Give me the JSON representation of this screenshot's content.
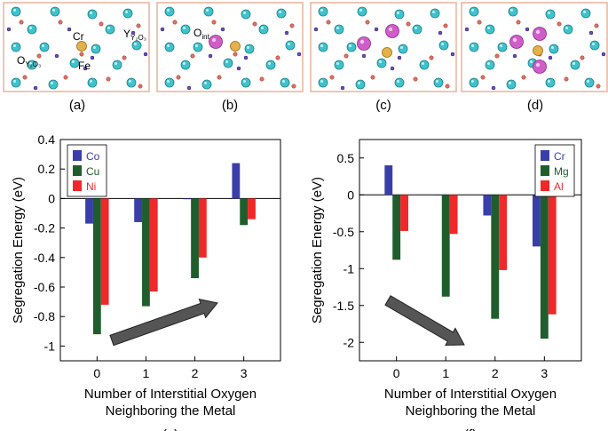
{
  "panels": {
    "a": {
      "label": "(a)",
      "annotations": {
        "cr": "Cr",
        "fe": "Fe",
        "y": "Y",
        "y_sub": "Y₂O₃",
        "o": "O",
        "o_sub": "Y₂O₃"
      }
    },
    "b": {
      "label": "(b)",
      "annotations": {
        "o": "O",
        "o_sub": "int"
      }
    },
    "c": {
      "label": "(c)"
    },
    "d": {
      "label": "(d)"
    }
  },
  "colors": {
    "frame": "#e8b49c",
    "y_atom": "#3ec3cc",
    "o_atom": "#e07060",
    "o_small": "#6a4fc0",
    "fe_atom": "#e3b24a",
    "o_int": "#cf5ec9",
    "arrow": "#555555"
  },
  "chart_data": [
    {
      "type": "bar",
      "panel_label": "(e)",
      "xlabel": "Number of Interstitial Oxygen",
      "xlabel_line2": "Neighboring the Metal",
      "ylabel": "Segregation Energy (eV)",
      "categories": [
        "0",
        "1",
        "2",
        "3"
      ],
      "ylim": [
        -1.1,
        0.4
      ],
      "yticks": [
        0.4,
        0.2,
        0,
        -0.2,
        -0.4,
        -0.6,
        -0.8,
        -1
      ],
      "ytick_labels": [
        "0.4",
        "0.2",
        "0",
        "-0.2",
        "-0.4",
        "-0.6",
        "-0.8",
        "-1"
      ],
      "legend_position": "top-left",
      "series": [
        {
          "name": "Co",
          "color": "#3a3ea8",
          "values": [
            -0.17,
            -0.16,
            0.0,
            0.24
          ]
        },
        {
          "name": "Cu",
          "color": "#1f5e2c",
          "values": [
            -0.92,
            -0.73,
            -0.54,
            -0.18
          ]
        },
        {
          "name": "Ni",
          "color": "#f0282a",
          "values": [
            -0.72,
            -0.63,
            -0.4,
            -0.14
          ]
        }
      ]
    },
    {
      "type": "bar",
      "panel_label": "(f)",
      "xlabel": "Number of Interstitial Oxygen",
      "xlabel_line2": "Neighboring the Metal",
      "ylabel": "Segregation Energy (eV)",
      "categories": [
        "0",
        "1",
        "2",
        "3"
      ],
      "ylim": [
        -2.25,
        0.75
      ],
      "yticks": [
        0.5,
        0,
        -0.5,
        -1,
        -1.5,
        -2
      ],
      "ytick_labels": [
        "0.5",
        "0",
        "-0.5",
        "-1",
        "-1.5",
        "-2"
      ],
      "legend_position": "top-right",
      "series": [
        {
          "name": "Cr",
          "color": "#3a3ea8",
          "values": [
            0.4,
            0.0,
            -0.28,
            -0.7
          ]
        },
        {
          "name": "Mg",
          "color": "#1f5e2c",
          "values": [
            -0.88,
            -1.38,
            -1.68,
            -1.95
          ]
        },
        {
          "name": "Al",
          "color": "#f0282a",
          "values": [
            -0.49,
            -0.53,
            -1.02,
            -1.62
          ]
        }
      ]
    }
  ]
}
